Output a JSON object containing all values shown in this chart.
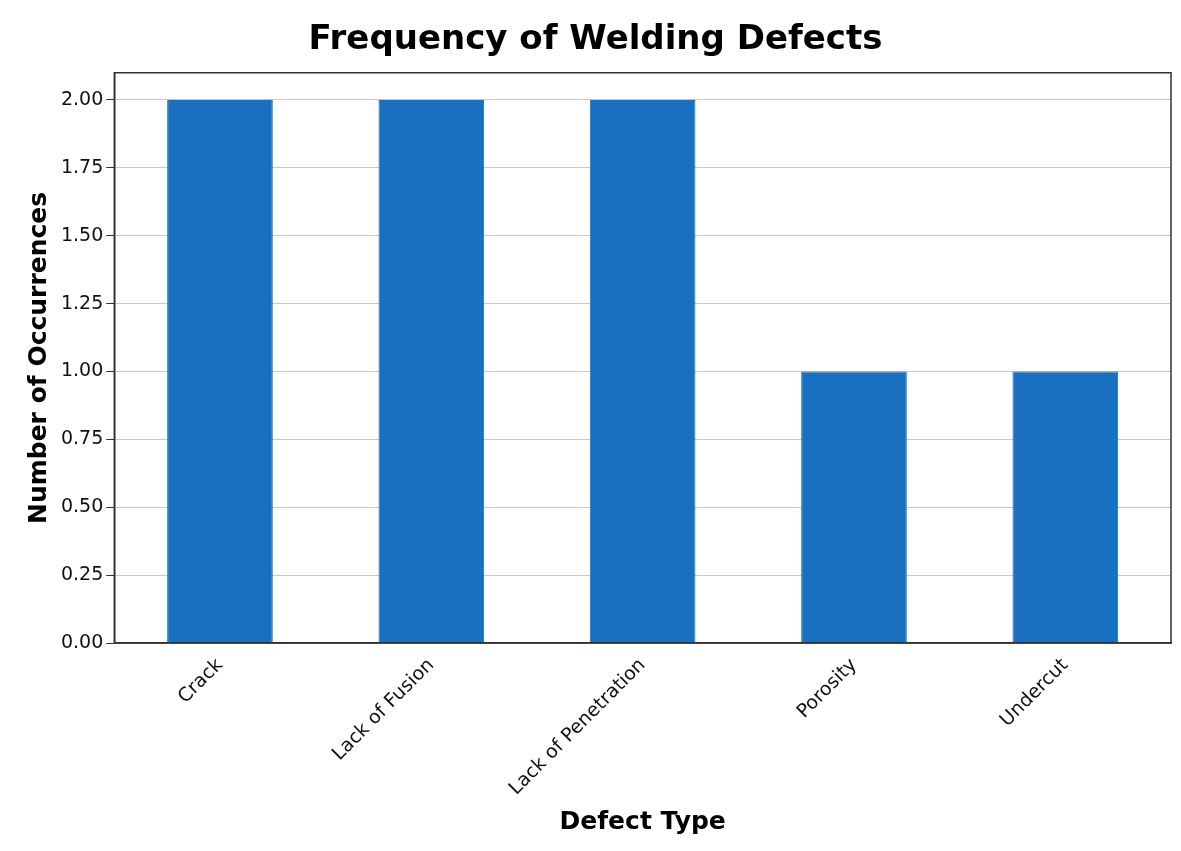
{
  "chart_data": {
    "type": "bar",
    "title": "Frequency of Welding Defects",
    "xlabel": "Defect Type",
    "ylabel": "Number of Occurrences",
    "categories": [
      "Crack",
      "Lack of Fusion",
      "Lack of Penetration",
      "Porosity",
      "Undercut"
    ],
    "values": [
      2,
      2,
      2,
      1,
      1
    ],
    "color": "#1a70c0",
    "ylim": [
      0,
      2.1
    ],
    "yticks": [
      {
        "value": 0,
        "label": "0.00"
      },
      {
        "value": 0.25,
        "label": "0.25"
      },
      {
        "value": 0.5,
        "label": "0.50"
      },
      {
        "value": 0.75,
        "label": "0.75"
      },
      {
        "value": 1,
        "label": "1.00"
      },
      {
        "value": 1.25,
        "label": "1.25"
      },
      {
        "value": 1.5,
        "label": "1.50"
      },
      {
        "value": 1.75,
        "label": "1.75"
      },
      {
        "value": 2,
        "label": "2.00"
      }
    ],
    "grid": "y"
  }
}
